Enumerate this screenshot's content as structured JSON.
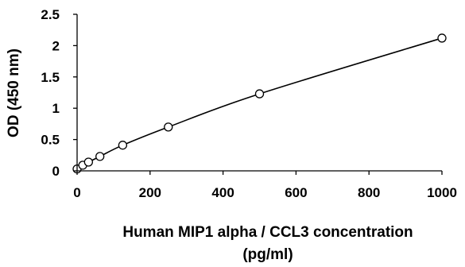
{
  "chart_data": {
    "type": "scatter",
    "title": "",
    "xlabel_line1": "Human MIP1 alpha / CCL3 concentration",
    "xlabel_line2": "(pg/ml)",
    "ylabel": "OD (450 nm)",
    "xlim": [
      0,
      1000
    ],
    "ylim": [
      0,
      2.5
    ],
    "xticks": [
      0,
      200,
      400,
      600,
      800,
      1000
    ],
    "yticks": [
      0,
      0.5,
      1,
      1.5,
      2,
      2.5
    ],
    "xtick_labels": [
      "0",
      "200",
      "400",
      "600",
      "800",
      "1000"
    ],
    "ytick_labels": [
      "0",
      "0.5",
      "1",
      "1.5",
      "2",
      "2.5"
    ],
    "grid": false,
    "series": [
      {
        "x": [
          0,
          15.6,
          31.25,
          62.5,
          125,
          250,
          500,
          1000
        ],
        "y": [
          0.03,
          0.09,
          0.14,
          0.23,
          0.41,
          0.7,
          1.23,
          2.12
        ],
        "marker": "open-circle",
        "fit": "smooth-curve"
      }
    ],
    "colors": {
      "marks": "#000000"
    }
  }
}
